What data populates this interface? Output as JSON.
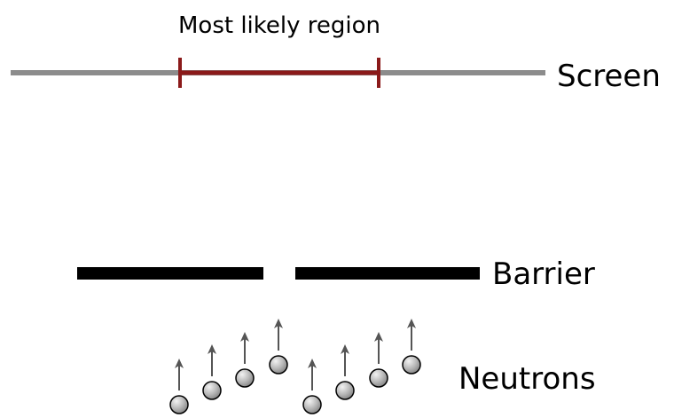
{
  "labels": {
    "region": "Most likely region",
    "screen": "Screen",
    "barrier": "Barrier",
    "neutrons": "Neutrons"
  },
  "colors": {
    "screen_line": "#8c8c8c",
    "region_marker": "#8b1a1a",
    "barrier": "#000000",
    "neutron_fill": "#b8b8b8",
    "neutron_stroke": "#000000",
    "arrow": "#555555"
  },
  "neutron_count": 8
}
